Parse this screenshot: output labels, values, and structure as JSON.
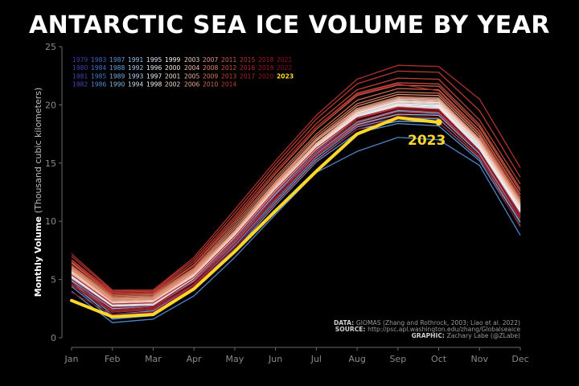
{
  "chart_data": {
    "type": "line",
    "title": "ANTARCTIC SEA ICE VOLUME BY YEAR",
    "ylabel": "Monthly Volume",
    "ylabel_unit": "(Thousand cubic kilometers)",
    "xlabel": "",
    "categories": [
      "Jan",
      "Feb",
      "Mar",
      "Apr",
      "May",
      "Jun",
      "Jul",
      "Aug",
      "Sep",
      "Oct",
      "Nov",
      "Dec"
    ],
    "ylim": [
      0,
      25
    ],
    "yticks": [
      0,
      5,
      10,
      15,
      20,
      25
    ],
    "grid": false,
    "legend_position": "top-left",
    "highlight_year": "2023",
    "highlight_color": "#FFD62C",
    "legend_columns": [
      [
        "1979",
        "1980",
        "1981",
        "1982"
      ],
      [
        "1983",
        "1984",
        "1985",
        "1986"
      ],
      [
        "1987",
        "1988",
        "1989",
        "1990"
      ],
      [
        "1991",
        "1992",
        "1993",
        "1994"
      ],
      [
        "1995",
        "1996",
        "1997",
        "1998"
      ],
      [
        "1999",
        "2000",
        "2001",
        "2002"
      ],
      [
        "2003",
        "2004",
        "2005",
        "2006"
      ],
      [
        "2007",
        "2008",
        "2009",
        "2010"
      ],
      [
        "2011",
        "2012",
        "2013",
        "2014"
      ],
      [
        "2015",
        "2016",
        "2017",
        ""
      ],
      [
        "2018",
        "2019",
        "2020",
        ""
      ],
      [
        "2021",
        "2022",
        "2023",
        ""
      ]
    ],
    "legend_colors": {
      "1979": "#3f3fa8",
      "1980": "#4242ad",
      "1981": "#4646b3",
      "1982": "#4a4ab8",
      "1983": "#3e64c0",
      "1984": "#4370c6",
      "1985": "#4a7ccc",
      "1986": "#5488d2",
      "1987": "#5e96d8",
      "1988": "#6aa2dc",
      "1989": "#78aee0",
      "1990": "#86b8e4",
      "1991": "#96c2e8",
      "1992": "#a6ccec",
      "1993": "#b6d6f0",
      "1994": "#c6def2",
      "1995": "#d6e6f4",
      "1996": "#e4edf6",
      "1997": "#eef2f8",
      "1998": "#f4f4f6",
      "1999": "#f8f4f2",
      "2000": "#f6ece6",
      "2001": "#f4e2d8",
      "2002": "#f2d8ca",
      "2003": "#f0ccbc",
      "2004": "#eec0ac",
      "2005": "#ecb29c",
      "2006": "#e8a48c",
      "2007": "#e4967c",
      "2008": "#e0886c",
      "2009": "#dc7a5e",
      "2010": "#d66c52",
      "2011": "#d05e48",
      "2012": "#ca5240",
      "2013": "#c44638",
      "2014": "#be3c32",
      "2015": "#b8322e",
      "2016": "#b22a2a",
      "2017": "#ac2428",
      "2018": "#a61e26",
      "2019": "#a01a24",
      "2020": "#9a1622",
      "2021": "#941220",
      "2022": "#8e0e1e",
      "2023": "#FFD62C"
    },
    "series": [
      {
        "name": "1979",
        "values": [
          5.6,
          3.0,
          3.1,
          5.4,
          8.8,
          12.8,
          16.4,
          19.2,
          20.3,
          20.2,
          16.6,
          11.2
        ]
      },
      {
        "name": "1980",
        "values": [
          5.4,
          2.9,
          3.0,
          5.3,
          8.7,
          12.7,
          16.3,
          19.0,
          20.1,
          20.0,
          16.3,
          11.0
        ]
      },
      {
        "name": "1981",
        "values": [
          5.3,
          2.7,
          2.9,
          5.1,
          8.5,
          12.5,
          16.1,
          18.9,
          19.9,
          19.8,
          16.2,
          10.8
        ]
      },
      {
        "name": "1982",
        "values": [
          5.7,
          3.1,
          3.2,
          5.5,
          8.9,
          12.9,
          16.5,
          19.3,
          20.4,
          20.3,
          16.7,
          11.3
        ]
      },
      {
        "name": "1983",
        "values": [
          5.8,
          3.2,
          3.3,
          5.6,
          9.0,
          13.0,
          16.6,
          19.4,
          20.5,
          20.5,
          16.8,
          11.4
        ]
      },
      {
        "name": "1984",
        "values": [
          5.2,
          2.6,
          2.8,
          5.0,
          8.4,
          12.4,
          16.0,
          18.8,
          19.8,
          19.7,
          16.1,
          10.7
        ]
      },
      {
        "name": "1985",
        "values": [
          5.5,
          2.9,
          3.0,
          5.3,
          8.8,
          12.8,
          16.4,
          19.1,
          20.2,
          20.1,
          16.5,
          11.1
        ]
      },
      {
        "name": "1986",
        "values": [
          4.0,
          1.3,
          1.6,
          3.6,
          6.9,
          10.6,
          14.2,
          16.0,
          17.2,
          17.0,
          14.8,
          8.8
        ]
      },
      {
        "name": "1987",
        "values": [
          4.4,
          1.6,
          1.9,
          4.1,
          7.5,
          11.4,
          15.1,
          17.6,
          18.4,
          18.2,
          15.2,
          9.6
        ]
      },
      {
        "name": "1988",
        "values": [
          4.8,
          2.0,
          2.3,
          4.5,
          7.9,
          11.8,
          15.5,
          18.1,
          18.9,
          18.8,
          15.6,
          10.1
        ]
      },
      {
        "name": "1989",
        "values": [
          5.0,
          2.4,
          2.6,
          4.8,
          8.2,
          12.2,
          15.8,
          18.5,
          19.4,
          19.3,
          15.9,
          10.5
        ]
      },
      {
        "name": "1990",
        "values": [
          4.6,
          1.8,
          2.1,
          4.3,
          7.7,
          11.6,
          15.3,
          17.9,
          18.6,
          18.5,
          15.4,
          9.9
        ]
      },
      {
        "name": "1991",
        "values": [
          5.1,
          2.5,
          2.7,
          4.9,
          8.3,
          12.3,
          15.9,
          18.6,
          19.5,
          19.4,
          16.0,
          10.6
        ]
      },
      {
        "name": "1992",
        "values": [
          4.9,
          2.2,
          2.4,
          4.6,
          8.0,
          12.0,
          15.6,
          18.3,
          19.2,
          19.1,
          15.8,
          10.3
        ]
      },
      {
        "name": "1993",
        "values": [
          5.3,
          2.8,
          2.9,
          5.1,
          8.6,
          12.6,
          16.2,
          18.9,
          19.9,
          19.8,
          16.2,
          10.9
        ]
      },
      {
        "name": "1994",
        "values": [
          5.4,
          2.9,
          3.0,
          5.2,
          8.7,
          12.7,
          16.3,
          19.0,
          20.0,
          19.9,
          16.4,
          11.0
        ]
      },
      {
        "name": "1995",
        "values": [
          5.6,
          3.0,
          3.1,
          5.4,
          8.9,
          12.9,
          16.5,
          19.2,
          20.2,
          20.1,
          16.6,
          11.2
        ]
      },
      {
        "name": "1996",
        "values": [
          5.2,
          2.7,
          2.8,
          5.0,
          8.5,
          12.5,
          16.1,
          18.8,
          19.8,
          19.7,
          16.2,
          10.8
        ]
      },
      {
        "name": "1997",
        "values": [
          5.5,
          3.0,
          3.1,
          5.3,
          8.8,
          12.8,
          16.4,
          19.1,
          20.1,
          20.0,
          16.5,
          11.1
        ]
      },
      {
        "name": "1998",
        "values": [
          5.7,
          3.1,
          3.2,
          5.5,
          9.0,
          13.0,
          16.6,
          19.3,
          20.3,
          20.2,
          16.7,
          11.3
        ]
      },
      {
        "name": "1999",
        "values": [
          5.4,
          2.8,
          2.9,
          5.2,
          8.7,
          12.7,
          16.3,
          19.0,
          20.0,
          19.9,
          16.3,
          11.0
        ]
      },
      {
        "name": "2000",
        "values": [
          5.6,
          3.0,
          3.1,
          5.4,
          8.9,
          12.9,
          16.5,
          19.3,
          20.3,
          20.2,
          16.7,
          11.3
        ]
      },
      {
        "name": "2001",
        "values": [
          5.3,
          2.8,
          2.9,
          5.1,
          8.6,
          12.6,
          16.2,
          18.9,
          19.9,
          19.8,
          16.3,
          10.9
        ]
      },
      {
        "name": "2002",
        "values": [
          5.7,
          3.1,
          3.2,
          5.5,
          9.0,
          13.0,
          16.7,
          19.4,
          20.4,
          20.3,
          16.8,
          11.4
        ]
      },
      {
        "name": "2003",
        "values": [
          5.5,
          3.0,
          3.1,
          5.4,
          8.9,
          12.9,
          16.5,
          19.2,
          20.2,
          20.1,
          16.6,
          11.2
        ]
      },
      {
        "name": "2004",
        "values": [
          5.8,
          3.2,
          3.3,
          5.6,
          9.1,
          13.1,
          16.7,
          19.5,
          20.5,
          20.4,
          16.9,
          11.5
        ]
      },
      {
        "name": "2005",
        "values": [
          5.6,
          3.1,
          3.2,
          5.5,
          9.0,
          13.0,
          16.6,
          19.4,
          20.4,
          20.3,
          16.8,
          11.4
        ]
      },
      {
        "name": "2006",
        "values": [
          5.9,
          3.3,
          3.4,
          5.7,
          9.2,
          13.2,
          16.9,
          19.6,
          20.6,
          20.5,
          17.0,
          11.6
        ]
      },
      {
        "name": "2007",
        "values": [
          6.0,
          3.4,
          3.5,
          5.8,
          9.4,
          13.4,
          17.1,
          19.9,
          20.9,
          20.8,
          17.3,
          11.8
        ]
      },
      {
        "name": "2008",
        "values": [
          5.8,
          3.2,
          3.3,
          5.6,
          9.2,
          13.3,
          17.0,
          19.7,
          20.7,
          20.6,
          17.1,
          11.7
        ]
      },
      {
        "name": "2009",
        "values": [
          6.1,
          3.5,
          3.6,
          5.9,
          9.6,
          13.6,
          17.3,
          20.1,
          21.1,
          21.0,
          17.5,
          12.0
        ]
      },
      {
        "name": "2010",
        "values": [
          6.2,
          3.6,
          3.7,
          6.0,
          9.8,
          13.8,
          17.5,
          20.4,
          21.4,
          21.3,
          17.8,
          12.3
        ]
      },
      {
        "name": "2011",
        "values": [
          6.4,
          3.7,
          3.8,
          6.2,
          10.0,
          14.1,
          17.9,
          20.8,
          21.7,
          21.6,
          18.1,
          12.6
        ]
      },
      {
        "name": "2012",
        "values": [
          6.5,
          3.8,
          3.9,
          6.3,
          10.2,
          14.3,
          18.1,
          21.0,
          21.9,
          21.8,
          18.3,
          12.8
        ]
      },
      {
        "name": "2013",
        "values": [
          6.7,
          3.9,
          4.0,
          6.5,
          10.4,
          14.6,
          18.4,
          21.3,
          22.3,
          22.2,
          18.7,
          13.2
        ]
      },
      {
        "name": "2014",
        "values": [
          7.0,
          4.0,
          4.1,
          6.7,
          10.7,
          14.9,
          18.8,
          21.8,
          22.9,
          22.8,
          19.5,
          13.8
        ]
      },
      {
        "name": "2015",
        "values": [
          7.2,
          4.1,
          4.1,
          6.9,
          11.0,
          15.2,
          19.1,
          22.2,
          23.4,
          23.3,
          20.5,
          14.6
        ]
      },
      {
        "name": "2016",
        "values": [
          6.6,
          3.8,
          3.9,
          6.3,
          10.2,
          14.3,
          18.1,
          20.9,
          21.8,
          21.2,
          17.6,
          12.1
        ]
      },
      {
        "name": "2017",
        "values": [
          5.4,
          2.9,
          3.0,
          5.2,
          8.7,
          12.7,
          16.3,
          18.9,
          19.8,
          19.6,
          16.0,
          10.6
        ]
      },
      {
        "name": "2018",
        "values": [
          4.6,
          2.3,
          2.5,
          4.6,
          8.1,
          12.0,
          15.7,
          18.4,
          19.4,
          19.2,
          15.9,
          10.4
        ]
      },
      {
        "name": "2019",
        "values": [
          4.5,
          2.2,
          2.4,
          4.5,
          8.0,
          11.9,
          15.6,
          18.2,
          19.1,
          18.9,
          15.6,
          10.1
        ]
      },
      {
        "name": "2020",
        "values": [
          4.8,
          2.4,
          2.6,
          4.8,
          8.3,
          12.2,
          15.9,
          18.6,
          19.6,
          19.4,
          16.0,
          10.5
        ]
      },
      {
        "name": "2021",
        "values": [
          5.0,
          2.6,
          2.7,
          5.0,
          8.5,
          12.5,
          16.1,
          18.8,
          19.7,
          19.5,
          16.0,
          10.3
        ]
      },
      {
        "name": "2022",
        "values": [
          3.9,
          2.0,
          2.2,
          4.4,
          7.7,
          11.5,
          15.2,
          17.9,
          18.9,
          18.5,
          15.5,
          9.5
        ]
      },
      {
        "name": "2023",
        "values": [
          3.2,
          1.8,
          2.0,
          4.2,
          7.4,
          10.9,
          14.3,
          17.5,
          18.9,
          18.5,
          null,
          null
        ]
      }
    ],
    "annotation_label": "2023",
    "sources": [
      {
        "key": "DATA:",
        "text": "GIOMAS (Zhang and Rothrock, 2003; Liao et al. 2022)"
      },
      {
        "key": "SOURCE:",
        "text": "http://psc.apl.washington.edu/zhang/Globalseaice"
      },
      {
        "key": "GRAPHIC:",
        "text": "Zachary Labe (@ZLabe)"
      }
    ]
  }
}
